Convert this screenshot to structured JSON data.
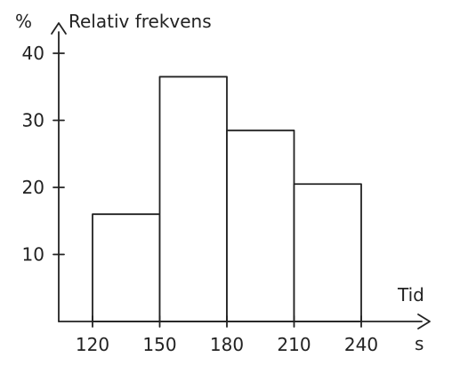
{
  "chart_data": {
    "type": "bar",
    "title": "",
    "ylabel": "Relativ frekvens",
    "ylabel_unit": "%",
    "xlabel": "Tid",
    "xlabel_unit": "s",
    "x_ticks": [
      120,
      150,
      180,
      210,
      240
    ],
    "y_ticks": [
      10,
      20,
      30,
      40
    ],
    "bins": [
      {
        "from": 120,
        "to": 150,
        "value": 16
      },
      {
        "from": 150,
        "to": 180,
        "value": 36.5
      },
      {
        "from": 180,
        "to": 210,
        "value": 28.5
      },
      {
        "from": 210,
        "to": 240,
        "value": 20.5
      }
    ],
    "xlim": [
      110,
      250
    ],
    "ylim": [
      0,
      45
    ],
    "grid": false,
    "colors": {
      "ink": "#222222",
      "background": "#ffffff"
    }
  }
}
